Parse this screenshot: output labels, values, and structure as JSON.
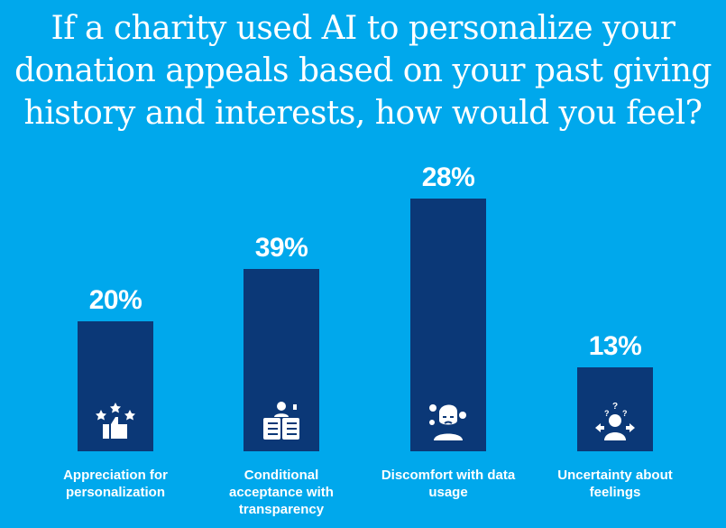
{
  "chart_data": {
    "type": "bar",
    "title": [
      "If a charity used AI to personalize your",
      "donation appeals based on your past giving",
      "history and interests, how would you feel?"
    ],
    "categories": [
      "Appreciation for personalization",
      "Conditional acceptance with transparency",
      "Discomfort with data usage",
      "Uncertainty about feelings"
    ],
    "label_lines": [
      [
        "Appreciation for",
        "personalization"
      ],
      [
        "Conditional",
        "acceptance with",
        "transparency"
      ],
      [
        "Discomfort with data",
        "usage"
      ],
      [
        "Uncertainty about",
        "feelings"
      ]
    ],
    "values": [
      20,
      39,
      28,
      13
    ],
    "value_labels": [
      "20%",
      "39%",
      "28%",
      "13%"
    ],
    "icons": [
      "thumbs-up-stars-icon",
      "person-checklist-icon",
      "uncomfortable-person-icon",
      "confused-person-icon"
    ],
    "xlabel": "",
    "ylabel": "",
    "grid": false,
    "colors": {
      "background": "#00a8ec",
      "bar": "#0b3877",
      "text": "#ffffff"
    }
  }
}
